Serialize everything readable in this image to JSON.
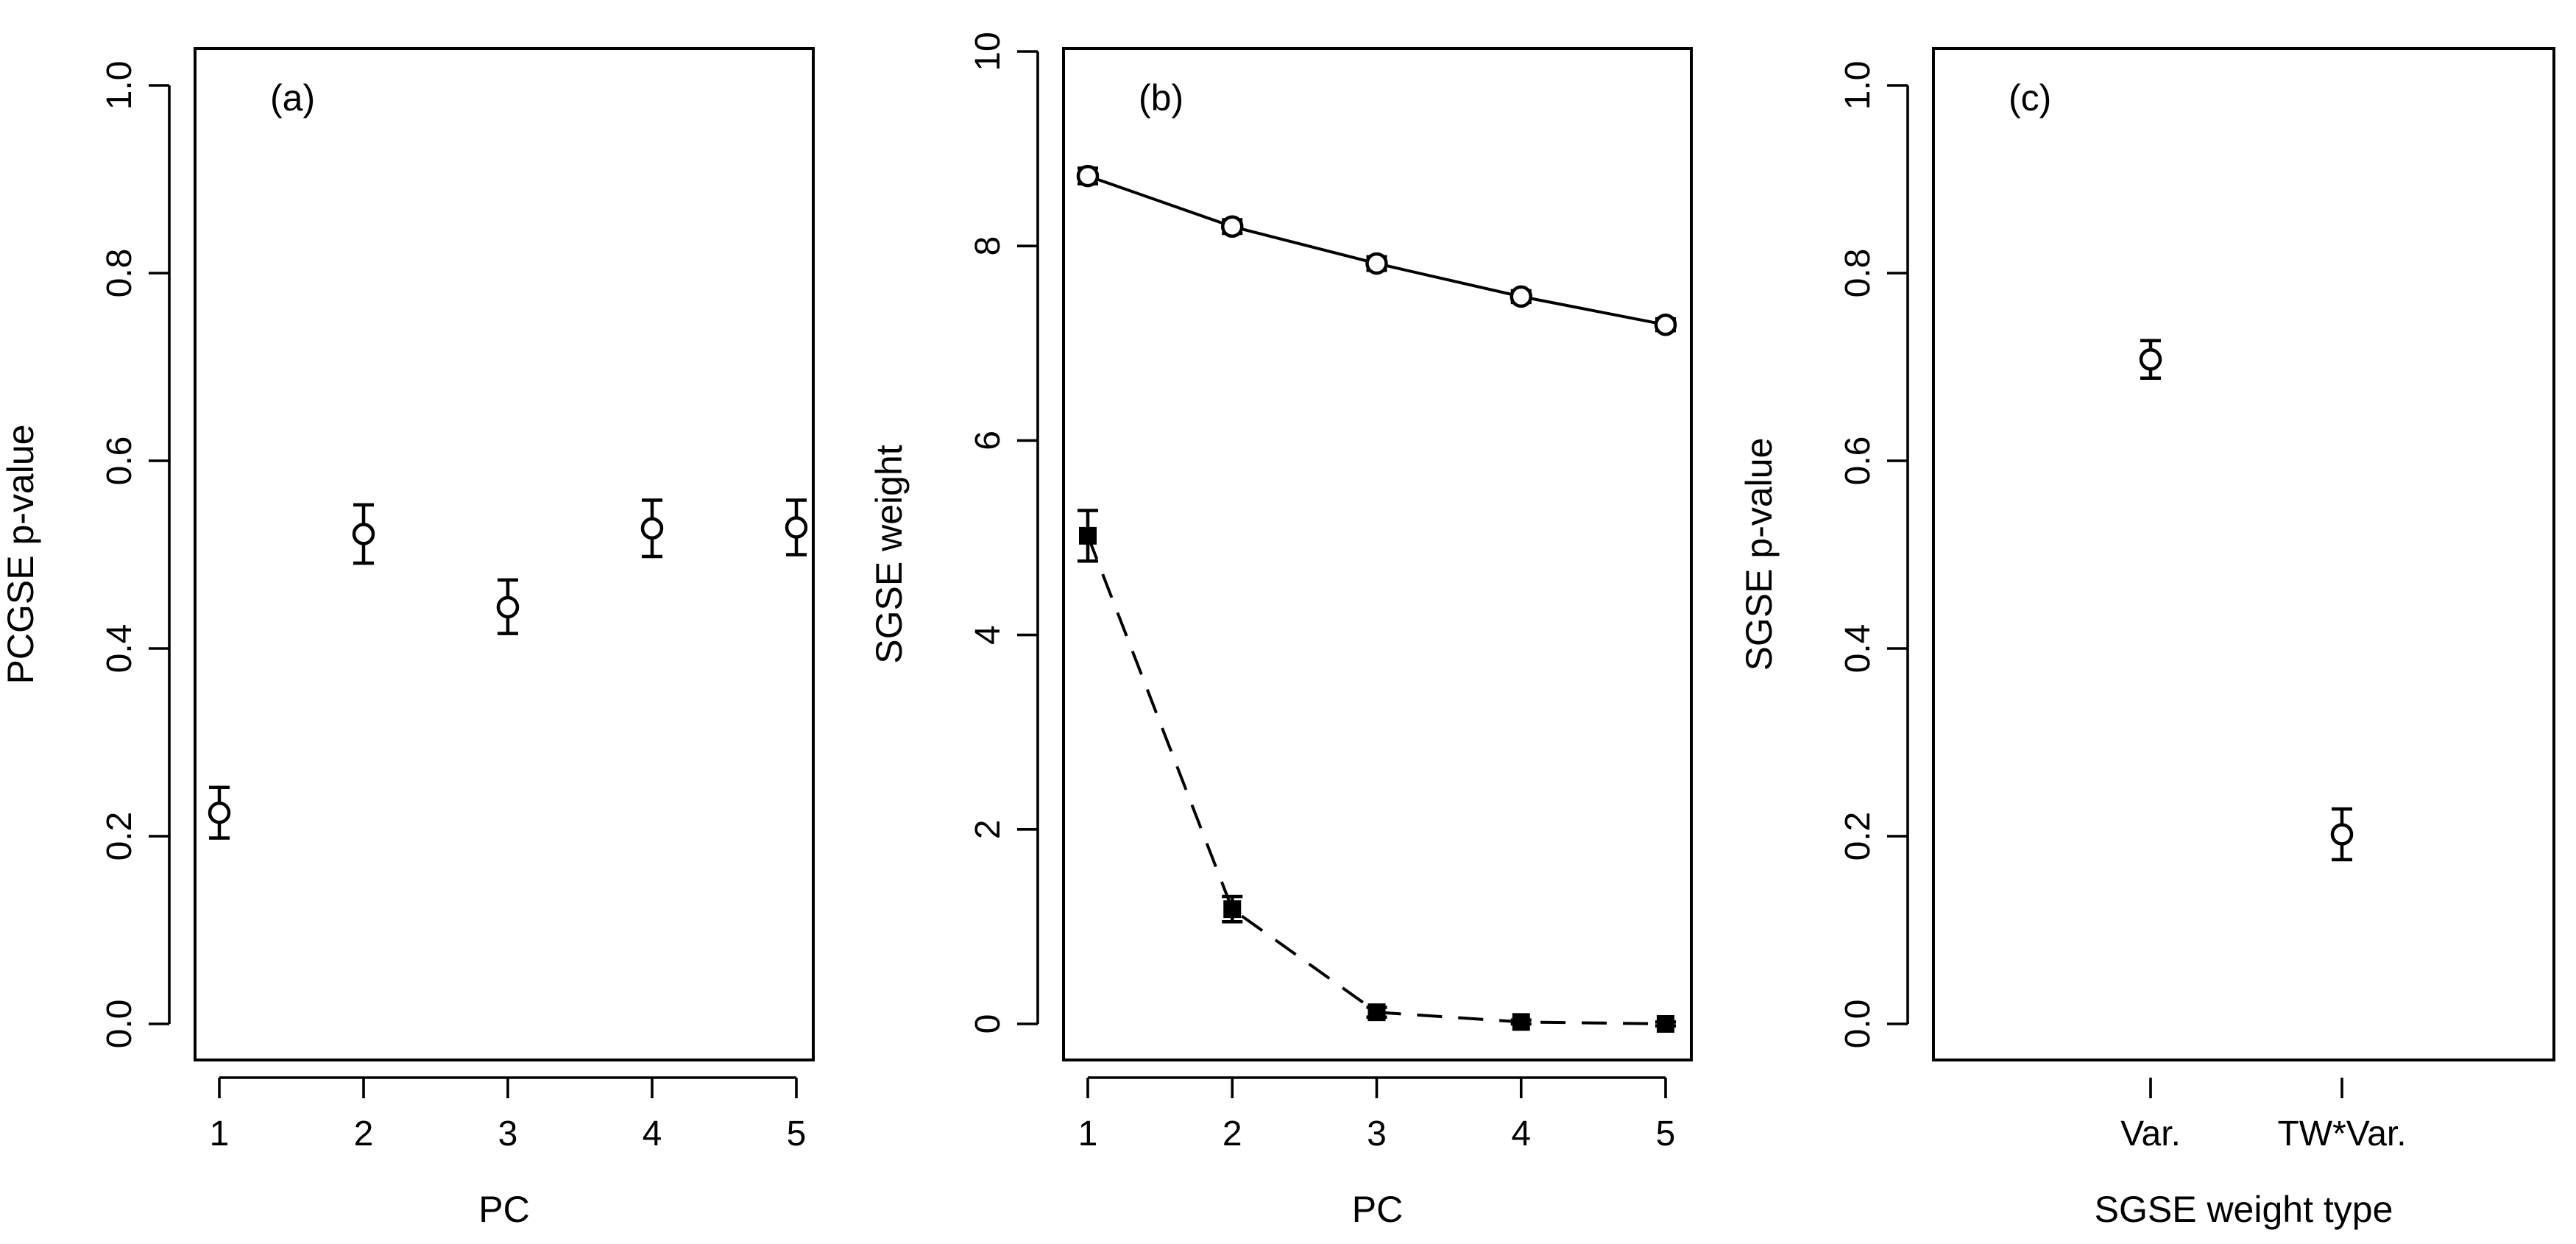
{
  "chart_data": [
    {
      "panel": "(a)",
      "type": "scatter",
      "xlabel": "PC",
      "ylabel": "PCGSE p-value",
      "x": [
        1,
        2,
        3,
        4,
        5
      ],
      "xticks": [
        "1",
        "2",
        "3",
        "4",
        "5"
      ],
      "yticks": [
        "0.0",
        "0.2",
        "0.4",
        "0.6",
        "0.8",
        "1.0"
      ],
      "ylim": [
        0,
        1
      ],
      "series": [
        {
          "marker": "open-circle",
          "values": [
            0.225,
            0.522,
            0.444,
            0.528,
            0.529
          ],
          "err_low": [
            0.198,
            0.491,
            0.416,
            0.498,
            0.5
          ],
          "err_high": [
            0.252,
            0.553,
            0.473,
            0.558,
            0.558
          ]
        }
      ]
    },
    {
      "panel": "(b)",
      "type": "line",
      "xlabel": "PC",
      "ylabel": "SGSE weight",
      "x": [
        1,
        2,
        3,
        4,
        5
      ],
      "xticks": [
        "1",
        "2",
        "3",
        "4",
        "5"
      ],
      "yticks": [
        "0",
        "2",
        "4",
        "6",
        "8",
        "10"
      ],
      "ylim": [
        0,
        10
      ],
      "series": [
        {
          "marker": "open-circle",
          "line": "solid",
          "values": [
            8.72,
            8.2,
            7.82,
            7.48,
            7.19
          ],
          "err_low": [
            8.64,
            8.13,
            7.75,
            7.42,
            7.13
          ],
          "err_high": [
            8.8,
            8.27,
            7.89,
            7.54,
            7.25
          ]
        },
        {
          "marker": "filled-square",
          "line": "dashed",
          "values": [
            5.02,
            1.18,
            0.12,
            0.02,
            0.0
          ],
          "err_low": [
            4.76,
            1.05,
            0.07,
            0.0,
            -0.02
          ],
          "err_high": [
            5.28,
            1.31,
            0.17,
            0.04,
            0.02
          ]
        }
      ]
    },
    {
      "panel": "(c)",
      "type": "scatter",
      "xlabel": "SGSE weight type",
      "ylabel": "SGSE p-value",
      "categories": [
        "Var.",
        "TW*Var."
      ],
      "yticks": [
        "0.0",
        "0.2",
        "0.4",
        "0.6",
        "0.8",
        "1.0"
      ],
      "ylim": [
        0,
        1
      ],
      "series": [
        {
          "marker": "open-circle",
          "values": [
            0.708,
            0.202
          ],
          "err_low": [
            0.688,
            0.175
          ],
          "err_high": [
            0.728,
            0.229
          ]
        }
      ]
    }
  ]
}
